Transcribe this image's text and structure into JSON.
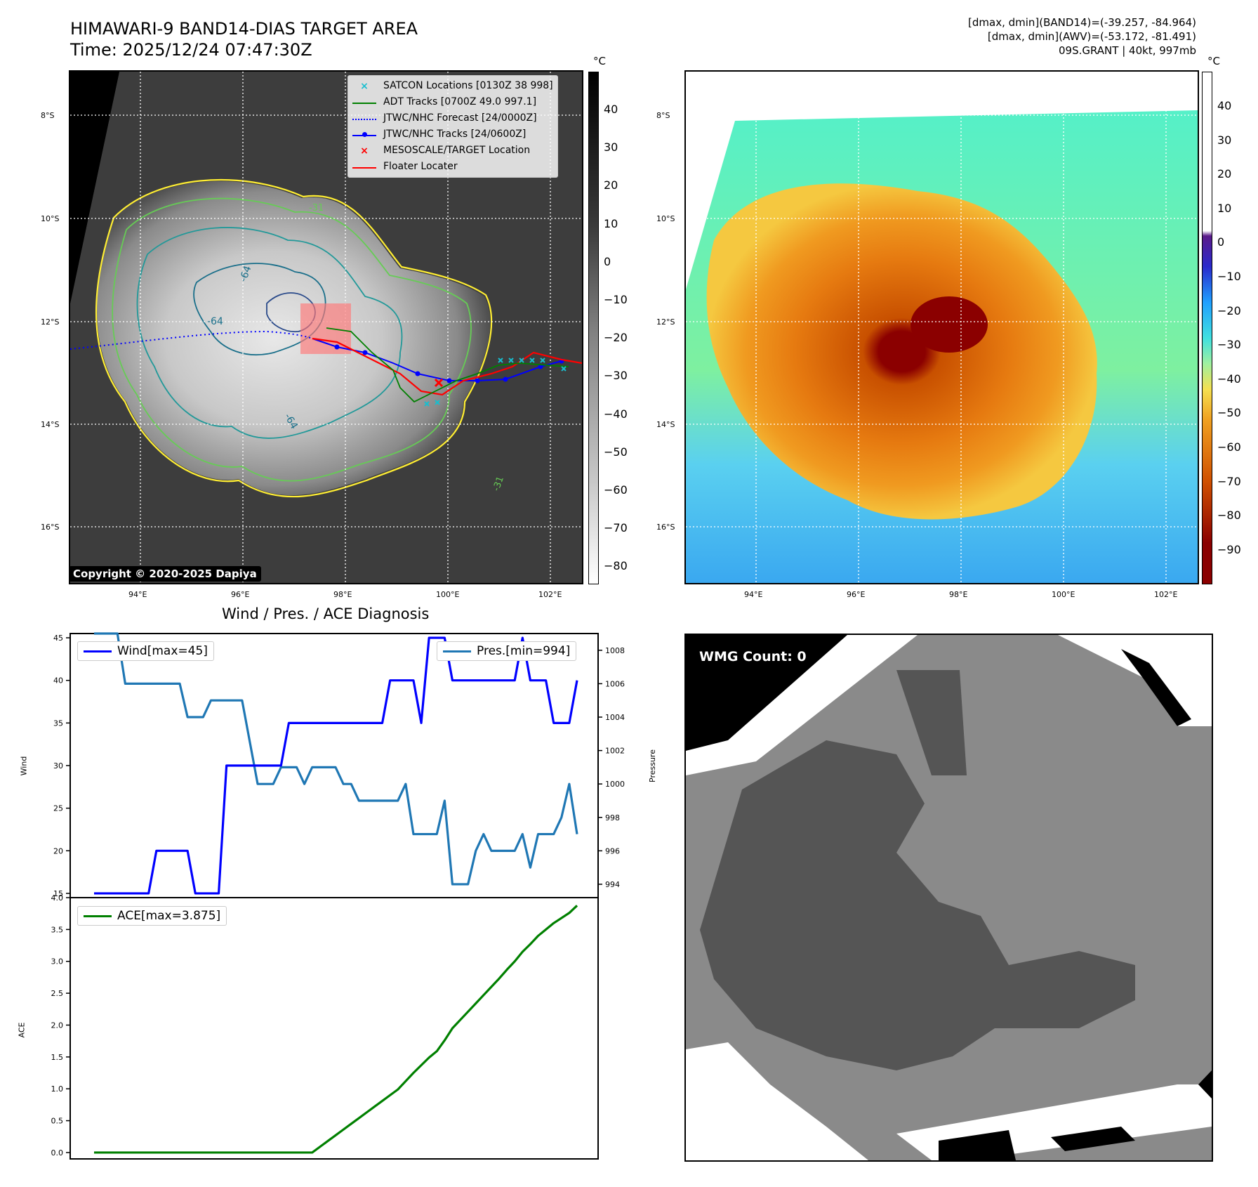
{
  "header": {
    "title": "HIMAWARI-9 BAND14-DIAS TARGET AREA",
    "time": "Time: 2025/12/24 07:47:30Z",
    "stats_line1": "[dmax, dmin](BAND14)=(-39.257, -84.964)",
    "stats_line2": "[dmax, dmin](AWV)=(-53.172, -81.491)",
    "stats_line3": "09S.GRANT | 40kt, 997mb"
  },
  "map": {
    "lat_labels": [
      "8°S",
      "10°S",
      "12°S",
      "14°S",
      "16°S"
    ],
    "lon_labels": [
      "94°E",
      "96°E",
      "98°E",
      "100°E",
      "102°E"
    ],
    "contour_labels": [
      "-64",
      "-64",
      "-64",
      "-31",
      "-31"
    ],
    "copyright": "Copyright © 2020-2025 Dapiya",
    "legend": [
      {
        "label": "SATCON Locations [0130Z 38 998]",
        "color": "#17becf",
        "marker": "x"
      },
      {
        "label": "ADT Tracks [0700Z 49.0 997.1]",
        "color": "#008000",
        "marker": "line"
      },
      {
        "label": "JTWC/NHC Forecast [24/0000Z]",
        "color": "#0000ff",
        "marker": "dot-line"
      },
      {
        "label": "JTWC/NHC Tracks [24/0600Z]",
        "color": "#0000ff",
        "marker": "line-dot"
      },
      {
        "label": "MESOSCALE/TARGET Location",
        "color": "#ff0000",
        "marker": "x"
      },
      {
        "label": "Floater Locater",
        "color": "#ff0000",
        "marker": "line"
      }
    ]
  },
  "colorbar_gray": {
    "unit": "°C",
    "ticks": [
      "40",
      "30",
      "20",
      "10",
      "0",
      "−10",
      "−20",
      "−30",
      "−40",
      "−50",
      "−60",
      "−70",
      "−80"
    ]
  },
  "colorbar_awv": {
    "unit": "°C",
    "ticks": [
      "40",
      "30",
      "20",
      "10",
      "0",
      "−10",
      "−20",
      "−30",
      "−40",
      "−50",
      "−60",
      "−70",
      "−80",
      "−90"
    ]
  },
  "wmg": {
    "label": "WMG Count: 0"
  },
  "chart_data": [
    {
      "type": "line",
      "title": "Wind / Pres. / ACE Diagnosis",
      "ylabel": "Wind",
      "ylabel_right": "Pressure",
      "ylim": [
        14.5,
        45.5
      ],
      "ylim_right": [
        993.2,
        1009.0
      ],
      "yticks": [
        15,
        20,
        25,
        30,
        35,
        40,
        45
      ],
      "yticks_right": [
        994,
        996,
        998,
        1000,
        1002,
        1004,
        1006,
        1008
      ],
      "series": [
        {
          "name": "Wind[max=45]",
          "color": "#0000ff",
          "values": [
            15,
            15,
            15,
            15,
            15,
            15,
            15,
            15,
            20,
            20,
            20,
            20,
            20,
            15,
            15,
            15,
            15,
            30,
            30,
            30,
            30,
            30,
            30,
            30,
            30,
            35,
            35,
            35,
            35,
            35,
            35,
            35,
            35,
            35,
            35,
            35,
            35,
            35,
            40,
            40,
            40,
            40,
            35,
            45,
            45,
            45,
            40,
            40,
            40,
            40,
            40,
            40,
            40,
            40,
            40,
            45,
            40,
            40,
            40,
            35,
            35,
            35,
            40
          ]
        },
        {
          "name": "Pres.[min=994]",
          "color": "#1f77b4",
          "values": [
            1009,
            1009,
            1009,
            1009,
            1006,
            1006,
            1006,
            1006,
            1006,
            1006,
            1006,
            1006,
            1004,
            1004,
            1004,
            1005,
            1005,
            1005,
            1005,
            1005,
            1002.5,
            1000,
            1000,
            1000,
            1001,
            1001,
            1001,
            1000,
            1001,
            1001,
            1001,
            1001,
            1000,
            1000,
            999,
            999,
            999,
            999,
            999,
            999,
            1000,
            997,
            997,
            997,
            997,
            999,
            994,
            994,
            994,
            996,
            997,
            996,
            996,
            996,
            996,
            997,
            995,
            997,
            997,
            997,
            998,
            1000,
            997
          ]
        }
      ]
    },
    {
      "type": "line",
      "ylabel": "ACE",
      "ylim": [
        -0.1,
        4.0
      ],
      "yticks": [
        0.0,
        0.5,
        1.0,
        1.5,
        2.0,
        2.5,
        3.0,
        3.5,
        4.0
      ],
      "series": [
        {
          "name": "ACE[max=3.875]",
          "color": "#008000",
          "values": [
            0,
            0,
            0,
            0,
            0,
            0,
            0,
            0,
            0,
            0,
            0,
            0,
            0,
            0,
            0,
            0,
            0,
            0,
            0,
            0,
            0,
            0,
            0,
            0,
            0,
            0,
            0,
            0,
            0,
            0.09,
            0.18,
            0.27,
            0.36,
            0.45,
            0.54,
            0.63,
            0.72,
            0.81,
            0.9,
            0.99,
            1.12,
            1.25,
            1.37,
            1.49,
            1.59,
            1.76,
            1.95,
            2.08,
            2.21,
            2.34,
            2.47,
            2.6,
            2.73,
            2.87,
            3.0,
            3.15,
            3.27,
            3.4,
            3.5,
            3.6,
            3.68,
            3.76,
            3.875
          ]
        }
      ]
    }
  ]
}
